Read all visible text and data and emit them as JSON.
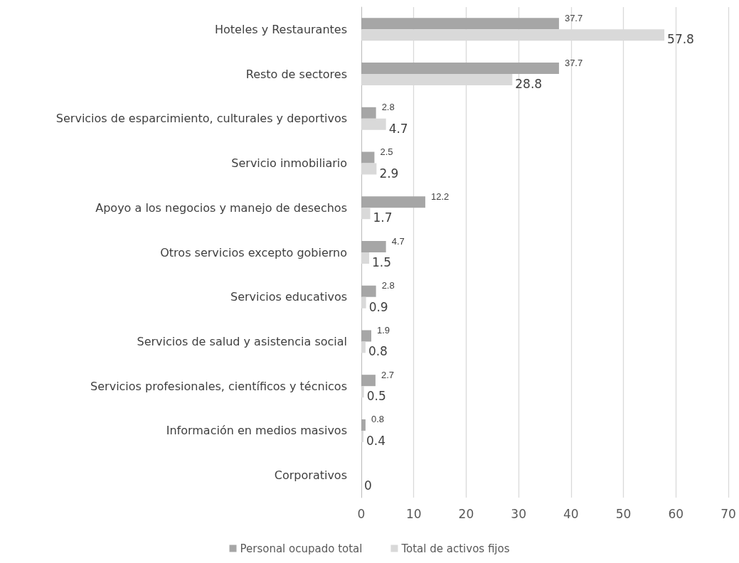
{
  "chart_data": {
    "type": "bar",
    "orientation": "horizontal",
    "categories": [
      "Hoteles y Restaurantes",
      "Resto de sectores",
      "Servicios de esparcimiento, culturales y deportivos",
      "Servicio inmobiliario",
      "Apoyo a los negocios y manejo de desechos",
      "Otros servicios excepto gobierno",
      "Servicios educativos",
      "Servicios de salud y asistencia social",
      "Servicios profesionales, científicos y técnicos",
      "Información en medios masivos",
      "Corporativos"
    ],
    "series": [
      {
        "name": "Personal ocupado total",
        "color": "#a6a6a6",
        "values": [
          37.7,
          37.7,
          2.8,
          2.5,
          12.2,
          4.7,
          2.8,
          1.9,
          2.7,
          0.8,
          null
        ],
        "value_labels": [
          "37.7",
          "37.7",
          "2.8",
          "2.5",
          "12.2",
          "4.7",
          "2.8",
          "1.9",
          "2.7",
          "0.8",
          null
        ]
      },
      {
        "name": "Total de activos fijos",
        "color": "#d9d9d9",
        "values": [
          57.8,
          28.8,
          4.7,
          2.9,
          1.7,
          1.5,
          0.9,
          0.8,
          0.5,
          0.4,
          0
        ],
        "value_labels": [
          "57.8",
          "28.8",
          "4.7",
          "2.9",
          "1.7",
          "1.5",
          "0.9",
          "0.8",
          "0.5",
          "0.4",
          "0"
        ]
      }
    ],
    "xlim": [
      0,
      70
    ],
    "xticks": [
      0,
      10,
      20,
      30,
      40,
      50,
      60,
      70
    ],
    "grid": "x",
    "legend": "bottom"
  }
}
